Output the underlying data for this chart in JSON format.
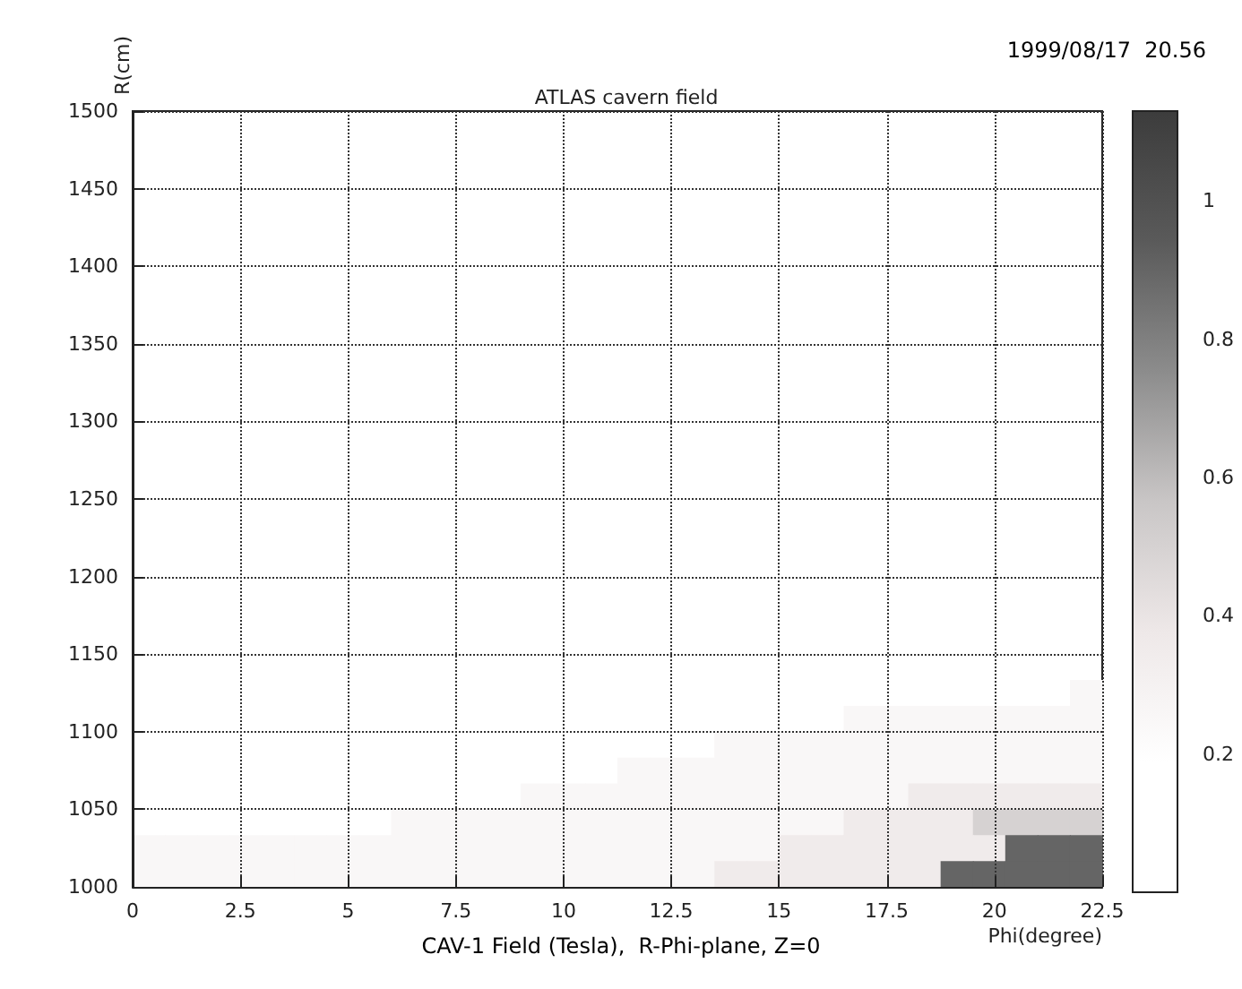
{
  "chart_data": {
    "type": "heatmap",
    "title": "ATLAS cavern field",
    "xlabel": "Phi(degree)",
    "ylabel": "R(cm)",
    "annotations": [
      "1999/08/17  20.56",
      "CAV-1 Field (Tesla),  R-Phi-plane, Z=0"
    ],
    "x": [
      0.375,
      1.125,
      1.875,
      2.625,
      3.375,
      4.125,
      4.875,
      5.625,
      6.375,
      7.125,
      7.875,
      8.625,
      9.375,
      10.125,
      10.875,
      11.625,
      12.375,
      13.125,
      13.875,
      14.625,
      15.375,
      16.125,
      16.875,
      17.625,
      18.375,
      19.125,
      19.875,
      20.625,
      21.375,
      22.125
    ],
    "y": [
      1125,
      1108.33,
      1091.67,
      1075,
      1058.33,
      1041.67,
      1025,
      1008.33
    ],
    "xlim": [
      0,
      22.5
    ],
    "xticks": [
      0,
      2.5,
      5,
      7.5,
      10,
      12.5,
      15,
      17.5,
      20,
      22.5
    ],
    "ylim": [
      1000,
      1500
    ],
    "yticks": [
      1000,
      1050,
      1100,
      1150,
      1200,
      1250,
      1300,
      1350,
      1400,
      1450,
      1500
    ],
    "clim": [
      0,
      1.13
    ],
    "cticks": [
      0.2,
      0.4,
      0.6,
      0.8,
      1
    ],
    "grid": true,
    "cells": [
      [
        null,
        null,
        null,
        null,
        null,
        null,
        null,
        null,
        null,
        null,
        null,
        null,
        null,
        null,
        null,
        null,
        null,
        null,
        null,
        null,
        null,
        null,
        null,
        null,
        null,
        null,
        null,
        null,
        null,
        0.25
      ],
      [
        null,
        null,
        null,
        null,
        null,
        null,
        null,
        null,
        null,
        null,
        null,
        null,
        null,
        null,
        null,
        null,
        null,
        null,
        null,
        null,
        null,
        null,
        0.25,
        0.25,
        0.25,
        0.25,
        0.25,
        0.25,
        0.25,
        0.25
      ],
      [
        null,
        null,
        null,
        null,
        null,
        null,
        null,
        null,
        null,
        null,
        null,
        null,
        null,
        null,
        null,
        null,
        null,
        null,
        0.25,
        0.25,
        0.25,
        0.25,
        0.25,
        0.25,
        0.25,
        0.25,
        0.25,
        0.25,
        0.25,
        0.25
      ],
      [
        null,
        null,
        null,
        null,
        null,
        null,
        null,
        null,
        null,
        null,
        null,
        null,
        null,
        null,
        null,
        0.25,
        0.25,
        0.25,
        0.25,
        0.25,
        0.25,
        0.25,
        0.25,
        0.25,
        0.25,
        0.25,
        0.25,
        0.25,
        0.25,
        0.25
      ],
      [
        null,
        null,
        null,
        null,
        null,
        null,
        null,
        null,
        null,
        null,
        null,
        null,
        0.25,
        0.25,
        0.25,
        0.25,
        0.25,
        0.25,
        0.25,
        0.25,
        0.25,
        0.25,
        0.25,
        0.25,
        0.35,
        0.35,
        0.35,
        0.35,
        0.35,
        0.35
      ],
      [
        null,
        null,
        null,
        null,
        null,
        null,
        null,
        null,
        0.25,
        0.25,
        0.25,
        0.25,
        0.25,
        0.25,
        0.25,
        0.25,
        0.25,
        0.25,
        0.25,
        0.25,
        0.25,
        0.25,
        0.35,
        0.35,
        0.35,
        0.35,
        0.5,
        0.5,
        0.5,
        0.5
      ],
      [
        0.25,
        0.25,
        0.25,
        0.25,
        0.25,
        0.25,
        0.25,
        0.25,
        0.25,
        0.25,
        0.25,
        0.25,
        0.25,
        0.25,
        0.25,
        0.25,
        0.25,
        0.25,
        0.25,
        0.25,
        0.35,
        0.35,
        0.35,
        0.35,
        0.35,
        0.35,
        0.35,
        0.9,
        0.9,
        0.9
      ],
      [
        0.25,
        0.25,
        0.25,
        0.25,
        0.25,
        0.25,
        0.25,
        0.25,
        0.25,
        0.25,
        0.25,
        0.25,
        0.25,
        0.25,
        0.25,
        0.25,
        0.25,
        0.25,
        0.35,
        0.35,
        0.35,
        0.35,
        0.35,
        0.35,
        0.35,
        0.9,
        0.9,
        0.9,
        0.9,
        0.9
      ]
    ]
  }
}
